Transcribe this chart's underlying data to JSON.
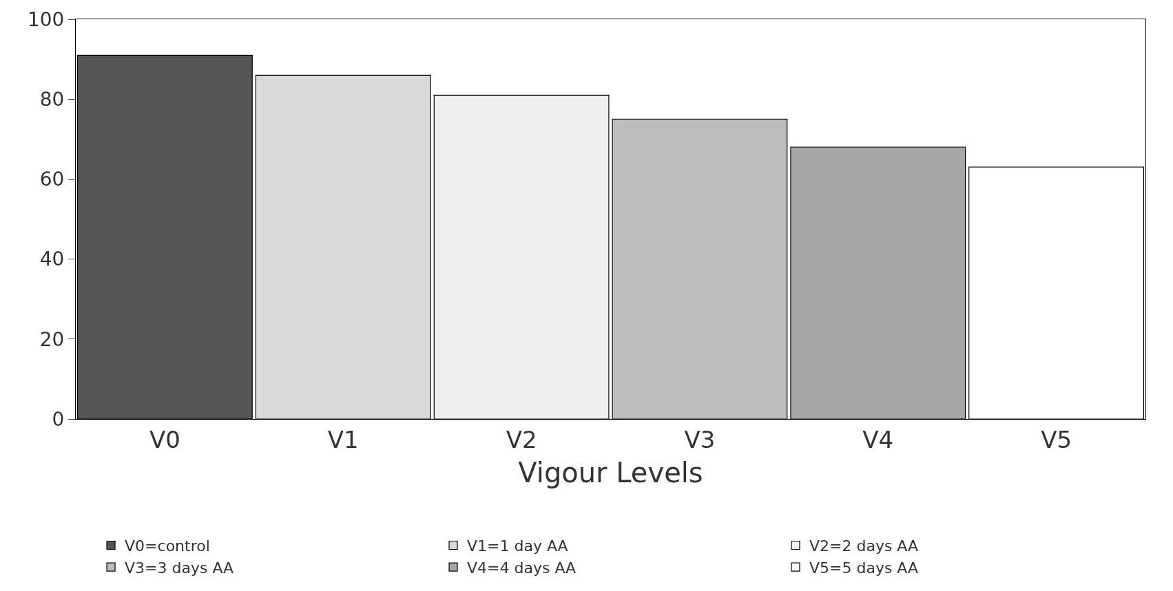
{
  "chart_data": {
    "type": "bar",
    "xlabel": "Vigour Levels",
    "categories": [
      "V0",
      "V1",
      "V2",
      "V3",
      "V4",
      "V5"
    ],
    "series": [
      {
        "name": "V0=control",
        "color": "#555555",
        "values": [
          91,
          null,
          null,
          null,
          null,
          null
        ]
      },
      {
        "name": "V1=1 day AA",
        "color": "#d9d9d9",
        "values": [
          null,
          86,
          null,
          null,
          null,
          null
        ]
      },
      {
        "name": "V2=2 days AA",
        "color": "#f0f0f0",
        "values": [
          null,
          null,
          81,
          null,
          null,
          null
        ]
      },
      {
        "name": "V3=3 days AA",
        "color": "#bdbdbd",
        "values": [
          null,
          null,
          null,
          75,
          null,
          null
        ]
      },
      {
        "name": "V4=4 days AA",
        "color": "#a6a6a6",
        "values": [
          null,
          null,
          null,
          null,
          68,
          null
        ]
      },
      {
        "name": "V5=5 days AA",
        "color": "#ffffff",
        "values": [
          null,
          null,
          null,
          null,
          null,
          63
        ]
      }
    ],
    "stacked": true,
    "ylim": [
      0,
      100
    ],
    "yticks": [
      0,
      20,
      40,
      60,
      80,
      100
    ],
    "legend": "bottom"
  }
}
